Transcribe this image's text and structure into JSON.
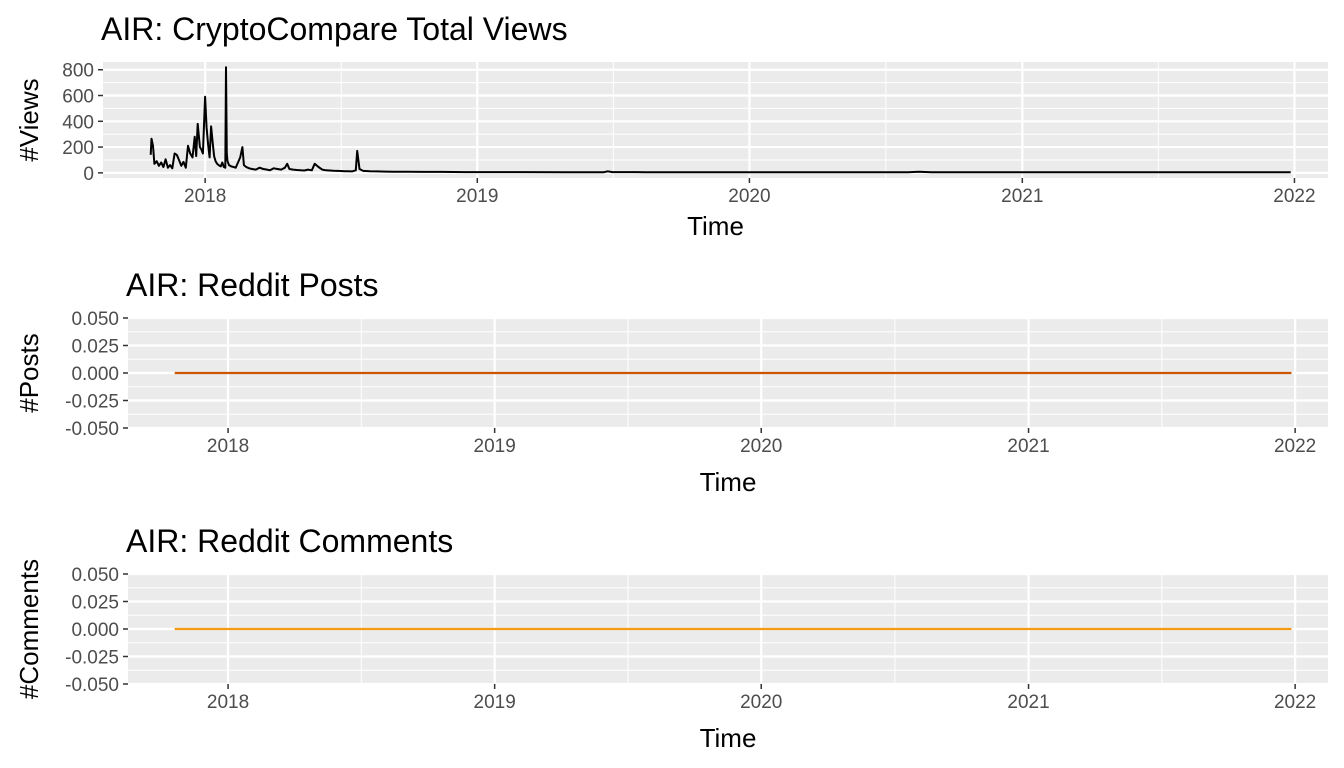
{
  "chart_data": [
    {
      "type": "line",
      "title": "AIR: CryptoCompare Total Views",
      "xlabel": "Time",
      "ylabel": "#Views",
      "xlim": [
        "2017-08-17",
        "2022-02-15"
      ],
      "ylim": [
        -40,
        860
      ],
      "x_ticks": [
        "2018",
        "2019",
        "2020",
        "2021",
        "2022"
      ],
      "y_ticks": [
        "0",
        "200",
        "400",
        "600",
        "800"
      ],
      "grid": true,
      "line_color": "#000000",
      "series": [
        {
          "x": [
            "2017-10-20",
            "2017-10-21",
            "2017-10-23",
            "2017-10-25",
            "2017-10-28",
            "2017-10-31",
            "2017-11-03",
            "2017-11-06",
            "2017-11-09",
            "2017-11-12",
            "2017-11-15",
            "2017-11-18",
            "2017-11-21",
            "2017-11-24",
            "2017-11-27",
            "2017-11-30",
            "2017-12-03",
            "2017-12-06",
            "2017-12-09",
            "2017-12-12",
            "2017-12-15",
            "2017-12-18",
            "2017-12-20",
            "2017-12-22",
            "2017-12-25",
            "2017-12-27",
            "2017-12-29",
            "2018-01-01",
            "2018-01-03",
            "2018-01-05",
            "2018-01-07",
            "2018-01-09",
            "2018-01-11",
            "2018-01-13",
            "2018-01-15",
            "2018-01-17",
            "2018-01-19",
            "2018-01-22",
            "2018-01-24",
            "2018-01-26",
            "2018-01-28",
            "2018-01-29",
            "2018-01-30",
            "2018-01-31",
            "2018-02-02",
            "2018-02-05",
            "2018-02-08",
            "2018-02-11",
            "2018-02-14",
            "2018-02-17",
            "2018-02-20",
            "2018-02-22",
            "2018-02-25",
            "2018-03-01",
            "2018-03-05",
            "2018-03-10",
            "2018-03-15",
            "2018-03-20",
            "2018-03-25",
            "2018-03-29",
            "2018-04-03",
            "2018-04-08",
            "2018-04-13",
            "2018-04-18",
            "2018-04-21",
            "2018-04-24",
            "2018-04-29",
            "2018-05-04",
            "2018-05-09",
            "2018-05-14",
            "2018-05-19",
            "2018-05-24",
            "2018-05-28",
            "2018-06-02",
            "2018-06-07",
            "2018-06-12",
            "2018-06-17",
            "2018-06-22",
            "2018-06-27",
            "2018-07-02",
            "2018-07-07",
            "2018-07-12",
            "2018-07-17",
            "2018-07-22",
            "2018-07-24",
            "2018-07-27",
            "2018-08-01",
            "2018-08-10",
            "2018-08-20",
            "2018-09-01",
            "2018-09-10",
            "2018-09-20",
            "2018-10-01",
            "2018-10-20",
            "2018-11-15",
            "2018-12-15",
            "2019-01-15",
            "2019-03-01",
            "2019-05-01",
            "2019-06-20",
            "2019-06-25",
            "2019-07-01",
            "2019-08-15",
            "2019-10-01",
            "2019-12-01",
            "2020-01-15",
            "2020-02-01",
            "2020-04-01",
            "2020-06-01",
            "2020-08-01",
            "2020-08-15",
            "2020-09-01",
            "2020-11-01",
            "2020-12-15",
            "2021-01-15",
            "2021-03-01",
            "2021-05-01",
            "2021-07-01",
            "2021-09-01",
            "2021-11-01",
            "2021-12-27"
          ],
          "y": [
            140,
            265,
            210,
            70,
            90,
            55,
            80,
            45,
            105,
            40,
            60,
            35,
            150,
            140,
            100,
            55,
            85,
            40,
            210,
            150,
            120,
            280,
            130,
            380,
            200,
            180,
            150,
            590,
            350,
            220,
            120,
            360,
            240,
            130,
            90,
            70,
            60,
            50,
            80,
            45,
            40,
            820,
            150,
            90,
            60,
            50,
            45,
            40,
            80,
            120,
            200,
            60,
            45,
            35,
            30,
            25,
            40,
            30,
            25,
            20,
            35,
            30,
            25,
            40,
            70,
            30,
            25,
            22,
            20,
            18,
            25,
            20,
            70,
            45,
            25,
            20,
            18,
            16,
            15,
            14,
            13,
            12,
            11,
            20,
            170,
            30,
            15,
            12,
            11,
            10,
            9,
            8,
            8,
            7,
            7,
            6,
            6,
            6,
            5,
            5,
            12,
            6,
            5,
            5,
            5,
            5,
            4,
            4,
            4,
            4,
            8,
            4,
            4,
            4,
            4,
            4,
            4,
            4,
            4,
            4,
            4
          ]
        }
      ]
    },
    {
      "type": "line",
      "title": "AIR: Reddit Posts",
      "xlabel": "Time",
      "ylabel": "#Posts",
      "xlim": [
        "2017-08-17",
        "2022-02-15"
      ],
      "ylim": [
        -0.05,
        0.05
      ],
      "x_ticks": [
        "2018",
        "2019",
        "2020",
        "2021",
        "2022"
      ],
      "y_ticks": [
        "-0.050",
        "-0.025",
        "0.000",
        "0.025",
        "0.050"
      ],
      "grid": true,
      "line_color": "#cc5500",
      "series": [
        {
          "x": [
            "2017-10-20",
            "2021-12-27"
          ],
          "y": [
            0,
            0
          ]
        }
      ]
    },
    {
      "type": "line",
      "title": "AIR: Reddit Comments",
      "xlabel": "Time",
      "ylabel": "#Comments",
      "xlim": [
        "2017-08-17",
        "2022-02-15"
      ],
      "ylim": [
        -0.05,
        0.05
      ],
      "x_ticks": [
        "2018",
        "2019",
        "2020",
        "2021",
        "2022"
      ],
      "y_ticks": [
        "-0.050",
        "-0.025",
        "0.000",
        "0.025",
        "0.050"
      ],
      "grid": true,
      "line_color": "#f39c12",
      "series": [
        {
          "x": [
            "2017-10-20",
            "2021-12-27"
          ],
          "y": [
            0,
            0
          ]
        }
      ]
    }
  ]
}
